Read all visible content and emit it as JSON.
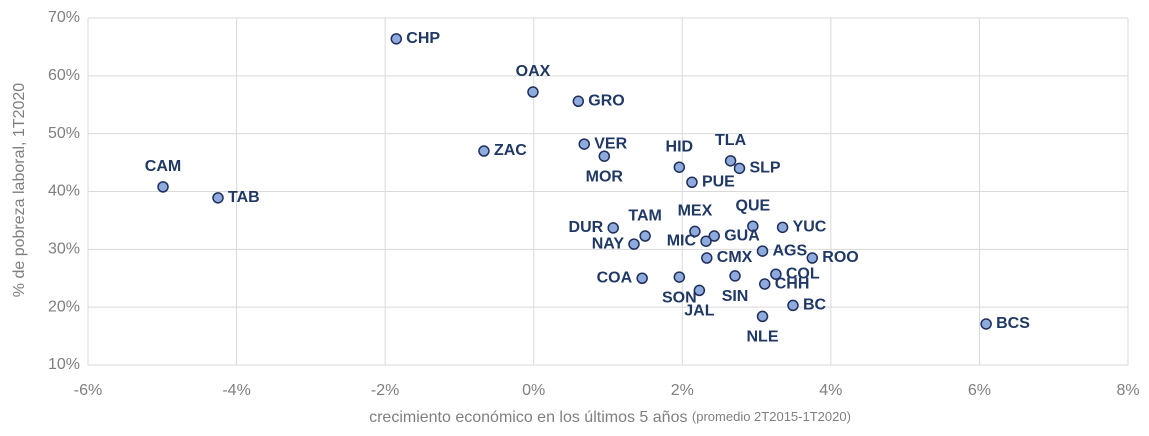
{
  "chart_data": {
    "type": "scatter",
    "xlabel": "crecimiento económico en los últimos 5 años",
    "xlabel_note": "(promedio 2T2015-1T2020)",
    "ylabel": "% de pobreza laboral, 1T2020",
    "xlim": [
      -6,
      8
    ],
    "xticks": [
      {
        "value": -6,
        "label": "-6%"
      },
      {
        "value": -4,
        "label": "-4%"
      },
      {
        "value": -2,
        "label": "-2%"
      },
      {
        "value": 0,
        "label": "0%"
      },
      {
        "value": 2,
        "label": "2%"
      },
      {
        "value": 4,
        "label": "4%"
      },
      {
        "value": 6,
        "label": "6%"
      },
      {
        "value": 8,
        "label": "8%"
      }
    ],
    "ylim": [
      10,
      70
    ],
    "yticks": [
      {
        "value": 10,
        "label": "10%"
      },
      {
        "value": 20,
        "label": "20%"
      },
      {
        "value": 30,
        "label": "30%"
      },
      {
        "value": 40,
        "label": "40%"
      },
      {
        "value": 50,
        "label": "50%"
      },
      {
        "value": 60,
        "label": "60%"
      },
      {
        "value": 70,
        "label": "70%"
      }
    ],
    "grid": true,
    "color": "#8faadc",
    "point_labels": [
      "CHP",
      "OAX",
      "GRO",
      "ZAC",
      "VER",
      "MOR",
      "HID",
      "TLA",
      "SLP",
      "PUE",
      "CAM",
      "TAB",
      "QUE",
      "YUC",
      "DUR",
      "MEX",
      "TAM",
      "GUA",
      "MIC",
      "NAY",
      "AGS",
      "CMX",
      "ROO",
      "COL",
      "SIN",
      "COA",
      "SON",
      "CHH",
      "JAL",
      "BC",
      "NLE",
      "BCS"
    ],
    "x": [
      -1.85,
      -0.01,
      0.6,
      -0.67,
      0.68,
      0.95,
      1.96,
      2.65,
      2.77,
      2.13,
      -4.99,
      -4.25,
      2.95,
      3.35,
      1.07,
      2.17,
      1.5,
      2.43,
      2.32,
      1.35,
      3.08,
      2.33,
      3.75,
      3.26,
      2.71,
      1.46,
      1.96,
      3.11,
      2.23,
      3.49,
      3.08,
      6.09
    ],
    "y": [
      66.4,
      57.2,
      55.6,
      47.0,
      48.2,
      46.1,
      44.2,
      45.3,
      44.0,
      41.6,
      40.8,
      38.9,
      34.0,
      33.8,
      33.7,
      33.1,
      32.3,
      32.3,
      31.4,
      30.9,
      29.7,
      28.5,
      28.5,
      25.7,
      25.4,
      25.0,
      25.2,
      24.0,
      22.9,
      20.3,
      18.4,
      17.1
    ]
  }
}
